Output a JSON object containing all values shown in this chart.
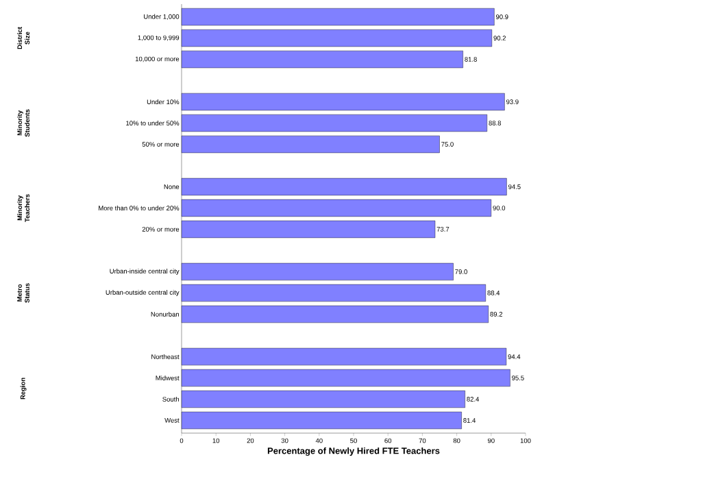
{
  "chart_data": {
    "type": "bar",
    "orientation": "horizontal",
    "xlabel": "Percentage of Newly Hired FTE Teachers",
    "categories": [
      "Under 1,000",
      "1,000 to 9,999",
      "10,000 or more",
      null,
      "Under 10%",
      "10% to under 50%",
      "50% or more",
      null,
      "None",
      "More than 0% to under 20%",
      "20% or more",
      null,
      "Urban-inside central city",
      "Urban-outside central city",
      "Nonurban",
      null,
      "Northeast",
      "Midwest",
      "South",
      "West"
    ],
    "values": [
      90.9,
      90.2,
      81.8,
      null,
      93.9,
      88.8,
      75.0,
      null,
      94.5,
      90.0,
      73.7,
      null,
      79.0,
      88.4,
      89.2,
      null,
      94.4,
      95.5,
      82.4,
      81.4
    ],
    "value_labels": [
      "90.9",
      "90.2",
      "81.8",
      null,
      "93.9",
      "88.8",
      "75.0",
      null,
      "94.5",
      "90.0",
      "73.7",
      null,
      "79.0",
      "88.4",
      "89.2",
      null,
      "94.4",
      "95.5",
      "82.4",
      "81.4"
    ],
    "annotations": [
      "District Size",
      "Minority Students",
      "Minority Teachers",
      "Metro Status",
      "Region"
    ],
    "color": "#8080ff",
    "xlim": [
      0,
      100
    ],
    "xticks": [
      0,
      10,
      20,
      30,
      40,
      50,
      60,
      70,
      80,
      90,
      100
    ],
    "grid": false
  }
}
